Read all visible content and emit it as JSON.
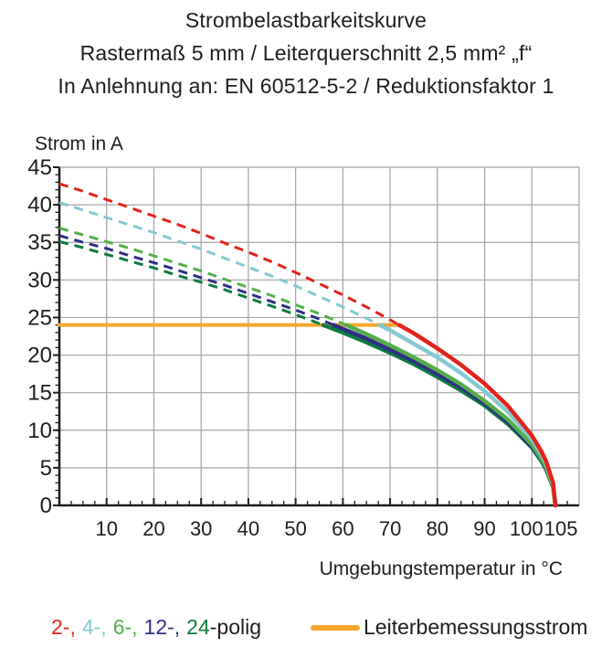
{
  "title": {
    "line1": "Strombelastbarkeitskurve",
    "line2": "Rastermaß 5 mm / Leiterquerschnitt 2,5 mm² „f“",
    "line3": "In Anlehnung an: EN 60512-5-2 / Reduktionsfaktor 1"
  },
  "chart_data": {
    "type": "line",
    "title": "Strombelastbarkeitskurve",
    "ylabel": "Strom in A",
    "xlabel": "Umgebungstemperatur in °C",
    "xlim": [
      0,
      110
    ],
    "ylim": [
      0,
      45
    ],
    "x_ticks_labeled": [
      10,
      20,
      30,
      40,
      50,
      60,
      70,
      80,
      90,
      100,
      105
    ],
    "y_ticks_labeled": [
      0,
      5,
      10,
      15,
      20,
      25,
      30,
      35,
      40,
      45
    ],
    "grid": true,
    "x_grid_step": 10,
    "y_grid_step": 5,
    "x_minor_step": 2.5,
    "y_minor_step": 1,
    "line_style_note": "curves dashed above threshold value, solid below",
    "x": [
      0,
      5,
      10,
      15,
      20,
      25,
      30,
      35,
      40,
      45,
      50,
      55,
      60,
      65,
      70,
      75,
      80,
      85,
      90,
      95,
      100,
      102,
      103,
      104.5,
      105
    ],
    "series": [
      {
        "name": "2-polig",
        "color": "#e2231a",
        "values": [
          42.8,
          41.8,
          40.7,
          39.6,
          38.5,
          37.4,
          36.2,
          34.9,
          33.7,
          32.4,
          31.0,
          29.5,
          28.0,
          26.4,
          24.7,
          22.9,
          20.9,
          18.7,
          16.2,
          13.2,
          9.3,
          7.2,
          5.9,
          3.0,
          0
        ]
      },
      {
        "name": "4-polig",
        "color": "#85c9d1",
        "values": [
          40.3,
          39.3,
          38.3,
          37.3,
          36.3,
          35.2,
          34.1,
          32.9,
          31.7,
          30.5,
          29.2,
          27.8,
          26.4,
          24.9,
          23.3,
          21.5,
          19.7,
          17.6,
          15.2,
          12.4,
          8.8,
          6.8,
          5.6,
          2.8,
          0
        ]
      },
      {
        "name": "6-polig",
        "color": "#53ae49",
        "values": [
          36.9,
          36.0,
          35.1,
          34.2,
          33.2,
          32.2,
          31.2,
          30.1,
          29.0,
          27.9,
          26.7,
          25.5,
          24.2,
          22.8,
          21.3,
          19.7,
          18.0,
          16.1,
          13.9,
          11.4,
          8.1,
          6.2,
          5.1,
          2.5,
          0
        ]
      },
      {
        "name": "12-polig",
        "color": "#2f2f86",
        "values": [
          35.9,
          35.0,
          34.2,
          33.2,
          32.3,
          31.3,
          30.3,
          29.3,
          28.2,
          27.1,
          26.0,
          24.8,
          23.5,
          22.2,
          20.7,
          19.2,
          17.5,
          15.7,
          13.6,
          11.1,
          7.8,
          6.1,
          5.0,
          2.5,
          0
        ]
      },
      {
        "name": "24-polig",
        "color": "#0c7b40",
        "values": [
          35.1,
          34.3,
          33.4,
          32.5,
          31.6,
          30.6,
          29.7,
          28.7,
          27.6,
          26.5,
          25.4,
          24.2,
          23.0,
          21.7,
          20.3,
          18.8,
          17.1,
          15.3,
          13.3,
          10.8,
          7.7,
          5.9,
          4.8,
          2.4,
          0
        ]
      }
    ],
    "threshold_line": {
      "name": "Leiterbemessungsstrom",
      "value": 24,
      "x_start": 0,
      "x_end": 72,
      "color": "#f7a62b"
    }
  },
  "legend": {
    "pole_items": [
      {
        "text": "2-,",
        "color": "#e2231a"
      },
      {
        "text": "4-,",
        "color": "#85c9d1"
      },
      {
        "text": "6-,",
        "color": "#53ae49"
      },
      {
        "text": "12-,",
        "color": "#2f2f86"
      },
      {
        "text": "24",
        "color": "#0c7b40"
      }
    ],
    "suffix": "-polig",
    "threshold_label": "Leiterbemessungsstrom"
  }
}
